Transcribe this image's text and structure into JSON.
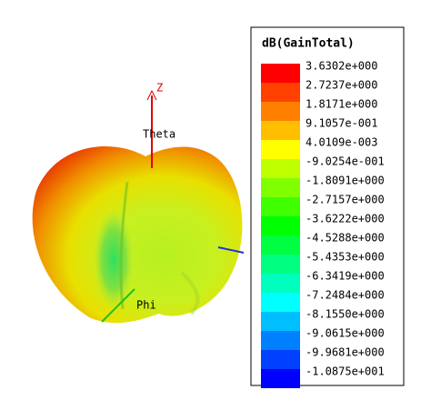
{
  "legend": {
    "title": "dB(GainTotal)",
    "entries": [
      {
        "label": "3.6302e+000",
        "color": "#ff0000"
      },
      {
        "label": "2.7237e+000",
        "color": "#ff4000"
      },
      {
        "label": "1.8171e+000",
        "color": "#ff8000"
      },
      {
        "label": "9.1057e-001",
        "color": "#ffbf00"
      },
      {
        "label": "4.0109e-003",
        "color": "#ffff00"
      },
      {
        "label": "-9.0254e-001",
        "color": "#c0ff00"
      },
      {
        "label": "-1.8091e+000",
        "color": "#80ff00"
      },
      {
        "label": "-2.7157e+000",
        "color": "#40ff00"
      },
      {
        "label": "-3.6222e+000",
        "color": "#00ff00"
      },
      {
        "label": "-4.5288e+000",
        "color": "#00ff40"
      },
      {
        "label": "-5.4353e+000",
        "color": "#00ff80"
      },
      {
        "label": "-6.3419e+000",
        "color": "#00ffbf"
      },
      {
        "label": "-7.2484e+000",
        "color": "#00ffff"
      },
      {
        "label": "-8.1550e+000",
        "color": "#00bfff"
      },
      {
        "label": "-9.0615e+000",
        "color": "#0080ff"
      },
      {
        "label": "-9.9681e+000",
        "color": "#0040ff"
      },
      {
        "label": "-1.0875e+001",
        "color": "#0000ff"
      }
    ]
  },
  "axis_labels": {
    "z": "Z",
    "theta": "Theta",
    "phi": "Phi"
  }
}
